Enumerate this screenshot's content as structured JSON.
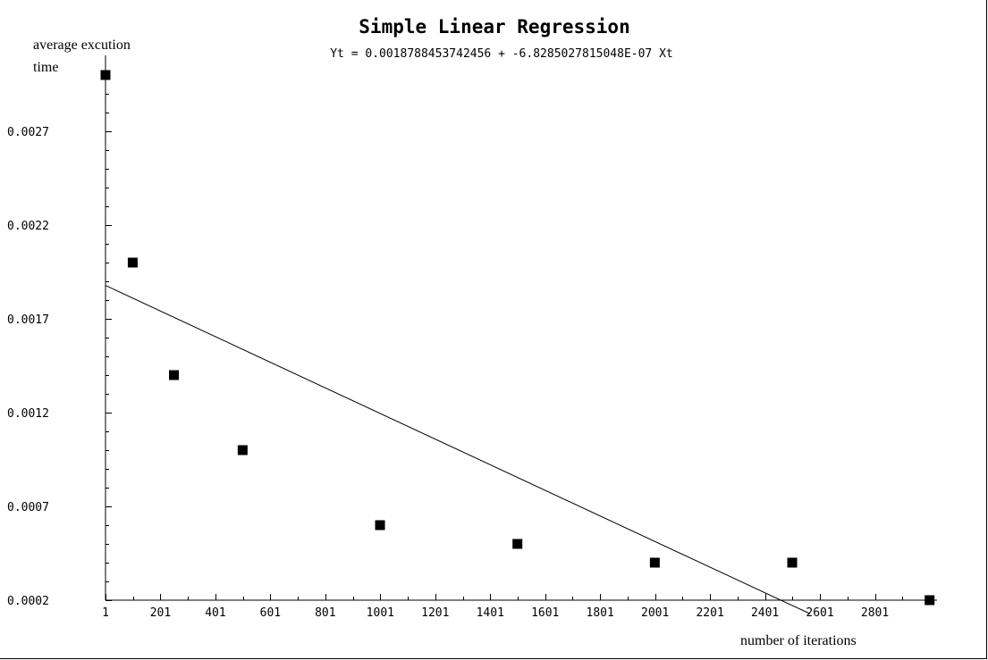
{
  "chart_data": {
    "type": "scatter",
    "title": "Simple Linear Regression",
    "subtitle": "Yt = 0.0018788453742456 + -6.8285027815048E-07 Xt",
    "ylabel_line1": "average excution",
    "ylabel_line2": "time",
    "xlabel": "number of iterations",
    "x_ticks": [
      "1",
      "201",
      "401",
      "601",
      "801",
      "1001",
      "1201",
      "1401",
      "1601",
      "1801",
      "2001",
      "2201",
      "2401",
      "2601",
      "2801"
    ],
    "y_ticks": [
      "0.0002",
      "0.0007",
      "0.0012",
      "0.0017",
      "0.0022",
      "0.0027"
    ],
    "xlim": [
      1,
      3001
    ],
    "ylim": [
      0.0002,
      0.003
    ],
    "points": [
      {
        "x": 1,
        "y": 0.003
      },
      {
        "x": 100,
        "y": 0.002
      },
      {
        "x": 250,
        "y": 0.0014
      },
      {
        "x": 500,
        "y": 0.001
      },
      {
        "x": 1000,
        "y": 0.0006
      },
      {
        "x": 1500,
        "y": 0.0005
      },
      {
        "x": 2000,
        "y": 0.0004
      },
      {
        "x": 2500,
        "y": 0.0004
      },
      {
        "x": 3000,
        "y": 0.0002
      }
    ],
    "regression": {
      "intercept": 0.0018788453742456,
      "slope": -6.8285027815048e-07
    },
    "regression_line_end_x": 2565,
    "grid": false,
    "legend": "none"
  }
}
